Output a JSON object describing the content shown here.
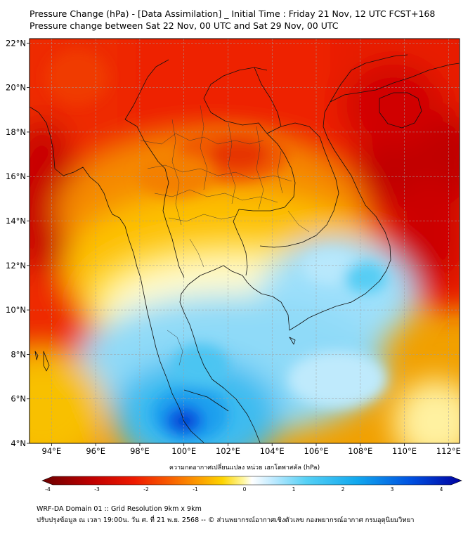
{
  "title": {
    "line1": "Pressure Change (hPa) - [Data Assimilation] _ Initial Time : Friday 21 Nov, 12 UTC FCST+168",
    "line2": "Pressure change between Sat 22 Nov, 00 UTC and Sat 29 Nov, 00 UTC"
  },
  "map": {
    "lon_labels": [
      "94°E",
      "96°E",
      "98°E",
      "100°E",
      "102°E",
      "104°E",
      "106°E",
      "108°E",
      "110°E",
      "112°E"
    ],
    "lat_labels": [
      "22°N",
      "20°N",
      "18°N",
      "16°N",
      "14°N",
      "12°N",
      "10°N",
      "8°N",
      "6°N",
      "4°N"
    ],
    "lon_range": [
      93,
      112.5
    ],
    "lat_range": [
      4,
      22.2
    ],
    "gridlines": true
  },
  "colorbar": {
    "label": "ความกดอากาศเปลี่ยนแปลง หน่วย เฮกโตพาสคัล (hPa)",
    "ticks": [
      "-4",
      "-3",
      "-2",
      "-1",
      "0",
      "1",
      "2",
      "3",
      "4"
    ],
    "range": [
      -4,
      4
    ],
    "colors": [
      "#6b0000",
      "#c00000",
      "#ee1a00",
      "#f85a00",
      "#fc9a00",
      "#fdd400",
      "#fff7a0",
      "#ffffff",
      "#bfeaff",
      "#55d0f5",
      "#12a8ee",
      "#0050e0",
      "#0000a0"
    ]
  },
  "footer": {
    "line1": "WRF-DA Domain 01 :: Grid Resolution 9km x 9km",
    "line2": "ปรับปรุงข้อมูล ณ เวลา 19:00น. วัน ศ. ที่ 21 พ.ย. 2568 -- © ส่วนพยากรณ์อากาศเชิงตัวเลข กองพยากรณ์อากาศ กรมอุตุนิยมวิทยา"
  }
}
